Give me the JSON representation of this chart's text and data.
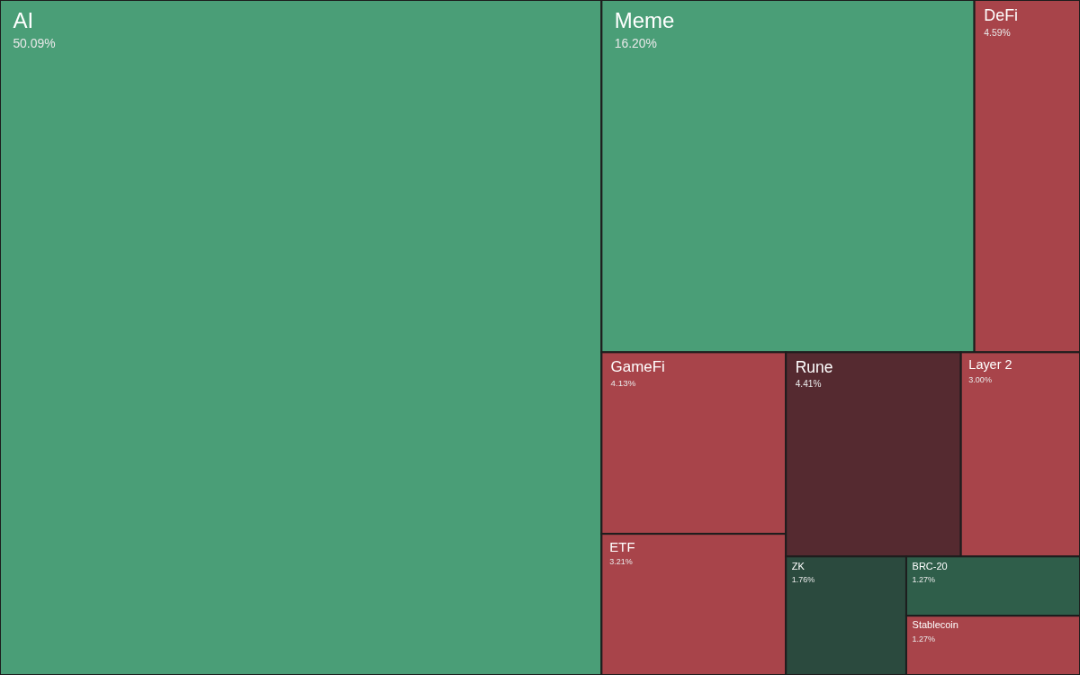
{
  "chart_data": {
    "type": "other",
    "categories": [
      "AI",
      "Meme",
      "DeFi",
      "GameFi",
      "ETF",
      "Rune",
      "Layer 2",
      "ZK",
      "BRC-20",
      "Stablecoin"
    ],
    "values": [
      50.09,
      16.2,
      4.59,
      4.13,
      3.21,
      4.41,
      3.0,
      1.76,
      1.27,
      1.27
    ],
    "value_labels": [
      "50.09%",
      "16.20%",
      "4.59%",
      "4.13%",
      "3.21%",
      "4.41%",
      "3.00%",
      "1.76%",
      "1.27%",
      "1.27%"
    ],
    "colors": [
      "#4a9e77",
      "#4a9e77",
      "#a8444a",
      "#a8444a",
      "#a8444a",
      "#552a30",
      "#a8444a",
      "#2b4a3e",
      "#2f5e4a",
      "#a8444a"
    ]
  }
}
